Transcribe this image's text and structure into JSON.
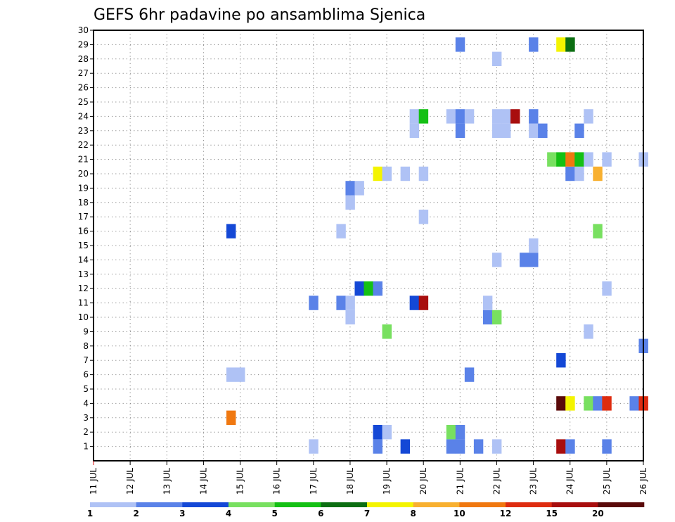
{
  "chart_data": {
    "type": "heatmap",
    "title": "GEFS 6hr padavine po ansamblima Sjenica",
    "x_labels": [
      "11 JUL",
      "12 JUL",
      "13 JUL",
      "14 JUL",
      "15 JUL",
      "16 JUL",
      "17 JUL",
      "18 JUL",
      "19 JUL",
      "20 JUL",
      "21 JUL",
      "22 JUL",
      "23 JUL",
      "24 JUL",
      "25 JUL",
      "26 JUL"
    ],
    "y_labels": [
      "1",
      "2",
      "3",
      "4",
      "5",
      "6",
      "7",
      "8",
      "9",
      "10",
      "11",
      "12",
      "13",
      "14",
      "15",
      "16",
      "17",
      "18",
      "19",
      "20",
      "21",
      "22",
      "23",
      "24",
      "25",
      "26",
      "27",
      "28",
      "29",
      "30"
    ],
    "x_range_days": [
      11,
      26
    ],
    "y_range": [
      0,
      30
    ],
    "grid": true,
    "legend": {
      "position": "bottom",
      "labels": [
        "1",
        "2",
        "3",
        "4",
        "5",
        "6",
        "7",
        "8",
        "10",
        "12",
        "15",
        "20"
      ],
      "colors": [
        "#afc2f5",
        "#5a82e8",
        "#1448d6",
        "#78e060",
        "#14c014",
        "#0c6e12",
        "#f4f400",
        "#f8b030",
        "#f07810",
        "#de2c10",
        "#a80e0e",
        "#5a0a0a"
      ]
    },
    "cells_note": "cells: [member, time_day (start of 6h step), precip_class 1-12]",
    "cells": [
      [
        1,
        17.0,
        1
      ],
      [
        1,
        18.75,
        2
      ],
      [
        1,
        19.5,
        3
      ],
      [
        1,
        20.75,
        2
      ],
      [
        1,
        21.0,
        2
      ],
      [
        1,
        21.5,
        2
      ],
      [
        1,
        22.0,
        1
      ],
      [
        1,
        23.75,
        11
      ],
      [
        1,
        24.0,
        2
      ],
      [
        1,
        25.0,
        2
      ],
      [
        2,
        18.75,
        3
      ],
      [
        2,
        19.0,
        1
      ],
      [
        2,
        20.75,
        4
      ],
      [
        2,
        21.0,
        2
      ],
      [
        3,
        14.75,
        9
      ],
      [
        4,
        23.75,
        12
      ],
      [
        4,
        24.0,
        7
      ],
      [
        4,
        24.5,
        4
      ],
      [
        4,
        24.75,
        2
      ],
      [
        4,
        25.0,
        10
      ],
      [
        4,
        25.75,
        2
      ],
      [
        4,
        26.0,
        10
      ],
      [
        6,
        14.75,
        1
      ],
      [
        6,
        15.0,
        1
      ],
      [
        6,
        21.25,
        2
      ],
      [
        7,
        23.75,
        3
      ],
      [
        8,
        26.0,
        2
      ],
      [
        9,
        19.0,
        4
      ],
      [
        9,
        24.5,
        1
      ],
      [
        10,
        18.0,
        1
      ],
      [
        10,
        21.75,
        2
      ],
      [
        10,
        22.0,
        4
      ],
      [
        11,
        17.0,
        2
      ],
      [
        11,
        17.75,
        2
      ],
      [
        11,
        18.0,
        1
      ],
      [
        11,
        19.75,
        3
      ],
      [
        11,
        20.0,
        11
      ],
      [
        11,
        21.75,
        1
      ],
      [
        12,
        18.25,
        3
      ],
      [
        12,
        18.5,
        5
      ],
      [
        12,
        18.75,
        2
      ],
      [
        12,
        25.0,
        1
      ],
      [
        14,
        22.0,
        1
      ],
      [
        14,
        22.75,
        2
      ],
      [
        14,
        23.0,
        2
      ],
      [
        15,
        23.0,
        1
      ],
      [
        16,
        14.75,
        3
      ],
      [
        16,
        17.75,
        1
      ],
      [
        16,
        24.75,
        4
      ],
      [
        17,
        20.0,
        1
      ],
      [
        18,
        18.0,
        1
      ],
      [
        19,
        18.0,
        2
      ],
      [
        19,
        18.25,
        1
      ],
      [
        20,
        18.75,
        7
      ],
      [
        20,
        19.0,
        1
      ],
      [
        20,
        19.5,
        1
      ],
      [
        20,
        20.0,
        1
      ],
      [
        20,
        24.0,
        2
      ],
      [
        20,
        24.25,
        1
      ],
      [
        20,
        24.75,
        8
      ],
      [
        21,
        23.5,
        4
      ],
      [
        21,
        23.75,
        5
      ],
      [
        21,
        24.0,
        9
      ],
      [
        21,
        24.25,
        5
      ],
      [
        21,
        24.5,
        1
      ],
      [
        21,
        25.0,
        1
      ],
      [
        21,
        26.0,
        1
      ],
      [
        23,
        19.75,
        1
      ],
      [
        23,
        21.0,
        2
      ],
      [
        23,
        22.0,
        1
      ],
      [
        23,
        22.25,
        1
      ],
      [
        23,
        23.0,
        1
      ],
      [
        23,
        23.25,
        2
      ],
      [
        23,
        24.25,
        2
      ],
      [
        24,
        19.75,
        1
      ],
      [
        24,
        20.0,
        5
      ],
      [
        24,
        20.75,
        1
      ],
      [
        24,
        21.0,
        2
      ],
      [
        24,
        21.25,
        1
      ],
      [
        24,
        22.0,
        1
      ],
      [
        24,
        22.25,
        1
      ],
      [
        24,
        22.5,
        11
      ],
      [
        24,
        23.0,
        2
      ],
      [
        24,
        24.5,
        1
      ],
      [
        28,
        22.0,
        1
      ],
      [
        29,
        21.0,
        2
      ],
      [
        29,
        23.0,
        2
      ],
      [
        29,
        23.75,
        7
      ],
      [
        29,
        24.0,
        6
      ]
    ]
  }
}
